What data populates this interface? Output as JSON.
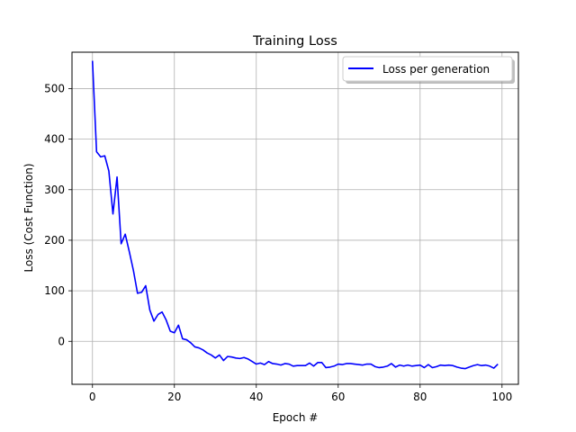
{
  "chart_data": {
    "type": "line",
    "title": "Training Loss",
    "xlabel": "Epoch #",
    "ylabel": "Loss (Cost Function)",
    "xlim": [
      -5,
      104
    ],
    "ylim": [
      -85,
      572
    ],
    "xticks": [
      0,
      20,
      40,
      60,
      80,
      100
    ],
    "yticks": [
      0,
      100,
      200,
      300,
      400,
      500
    ],
    "grid": true,
    "legend_position": "top-right",
    "series": [
      {
        "name": "Loss per generation",
        "color": "#0000ff",
        "x": [
          0,
          1,
          2,
          3,
          4,
          5,
          6,
          7,
          8,
          9,
          10,
          11,
          12,
          13,
          14,
          15,
          16,
          17,
          18,
          19,
          20,
          21,
          22,
          23,
          24,
          25,
          26,
          27,
          28,
          29,
          30,
          31,
          32,
          33,
          34,
          35,
          36,
          37,
          38,
          39,
          40,
          41,
          42,
          43,
          44,
          45,
          46,
          47,
          48,
          49,
          50,
          51,
          52,
          53,
          54,
          55,
          56,
          57,
          58,
          59,
          60,
          61,
          62,
          63,
          64,
          65,
          66,
          67,
          68,
          69,
          70,
          71,
          72,
          73,
          74,
          75,
          76,
          77,
          78,
          79,
          80,
          81,
          82,
          83,
          84,
          85,
          86,
          87,
          88,
          89,
          90,
          91,
          92,
          93,
          94,
          95,
          96,
          97,
          98,
          99
        ],
        "y": [
          555,
          375,
          365,
          367,
          337,
          252,
          325,
          193,
          212,
          177,
          140,
          95,
          97,
          110,
          62,
          40,
          53,
          58,
          42,
          20,
          17,
          32,
          5,
          3,
          -3,
          -11,
          -13,
          -17,
          -23,
          -27,
          -33,
          -27,
          -38,
          -30,
          -31,
          -33,
          -34,
          -32,
          -35,
          -40,
          -45,
          -43,
          -46,
          -40,
          -44,
          -45,
          -47,
          -44,
          -45,
          -49,
          -48,
          -48,
          -48,
          -43,
          -49,
          -42,
          -42,
          -52,
          -51,
          -49,
          -45,
          -46,
          -44,
          -44,
          -45,
          -46,
          -47,
          -45,
          -45,
          -50,
          -52,
          -51,
          -49,
          -44,
          -51,
          -47,
          -49,
          -47,
          -49,
          -48,
          -47,
          -52,
          -46,
          -52,
          -50,
          -47,
          -48,
          -47,
          -48,
          -51,
          -53,
          -54,
          -51,
          -48,
          -46,
          -48,
          -47,
          -49,
          -53,
          -45
        ]
      }
    ]
  }
}
